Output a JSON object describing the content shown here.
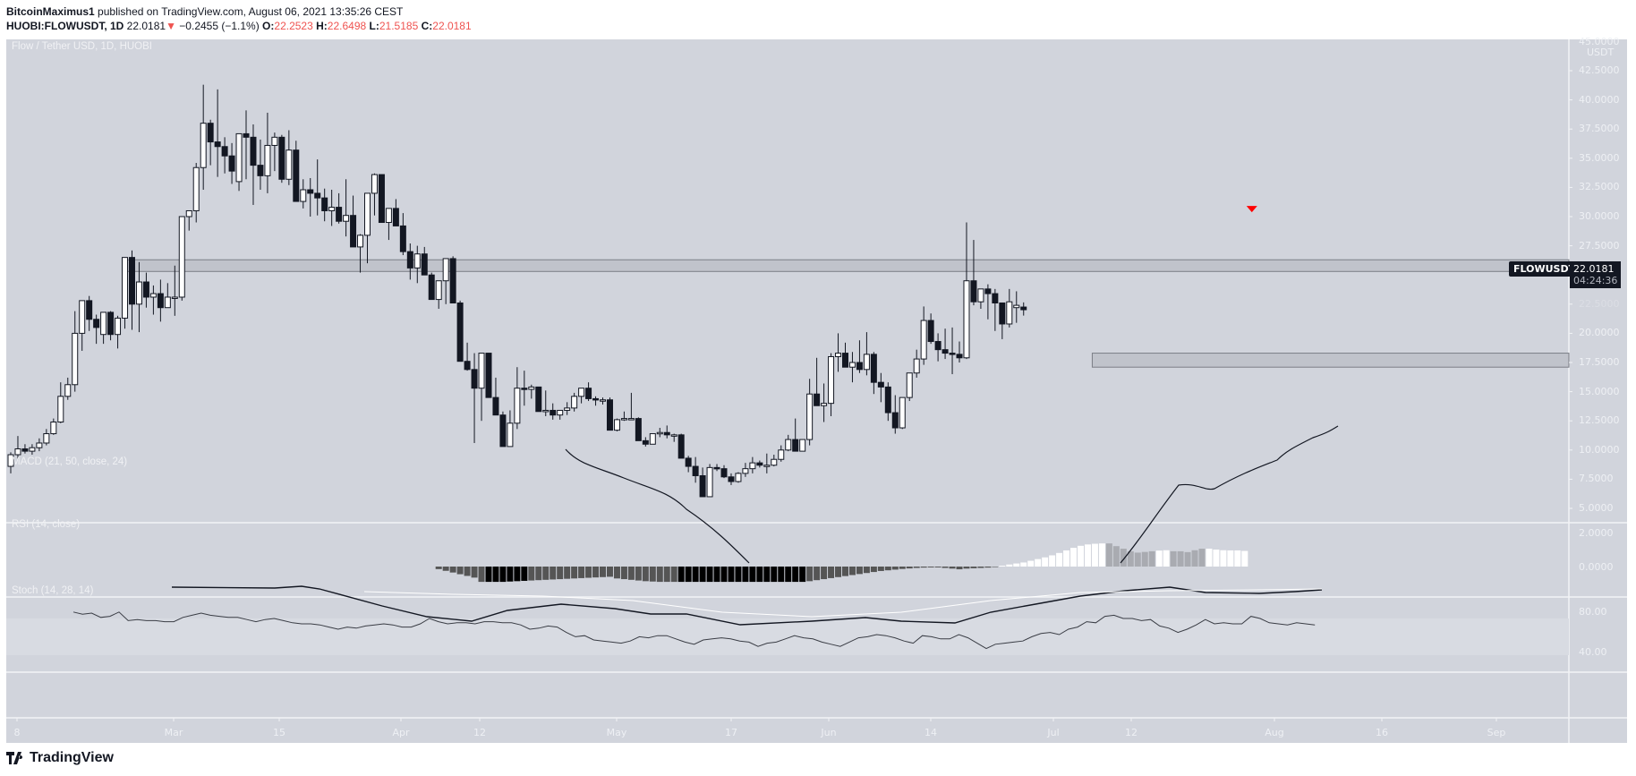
{
  "header": {
    "author": "BitcoinMaximus1",
    "published_text": "published on TradingView.com, August 06, 2021 13:35:26 CEST",
    "symbol_line": "HUOBI:FLOWUSDT, 1D",
    "last": "22.0181",
    "change": "−0.2455 (−1.1%)",
    "o_label": "O:",
    "o": "22.2523",
    "h_label": "H:",
    "h": "22.6498",
    "l_label": "L:",
    "l": "21.5185",
    "c_label": "C:",
    "c": "22.0181",
    "down_arrow": "▼"
  },
  "chart_title": "Flow / Tether USD, 1D, HUOBI",
  "price_axis": {
    "unit": "USDT",
    "top_partial": "45.0000",
    "ticks": [
      "42.5000",
      "40.0000",
      "37.5000",
      "35.0000",
      "32.5000",
      "30.0000",
      "27.5000",
      "25.0000",
      "22.5000",
      "20.0000",
      "17.5000",
      "15.0000",
      "12.5000",
      "10.0000",
      "7.5000",
      "5.0000"
    ]
  },
  "symbol_tag": "FLOWUSDT",
  "price_tag": {
    "price": "22.0181",
    "countdown": "04:24:36"
  },
  "macd": {
    "label": "MACD (21, 50, close, 24)",
    "ticks": [
      "2.0000",
      "0.0000"
    ]
  },
  "rsi": {
    "label": "RSI (14, close)",
    "ticks": [
      "80.00",
      "40.00"
    ]
  },
  "stoch": {
    "label": "Stoch (14, 28, 14)"
  },
  "time_axis": [
    "8",
    "Mar",
    "15",
    "Apr",
    "12",
    "May",
    "17",
    "Jun",
    "14",
    "Jul",
    "12",
    "Aug",
    "16",
    "Sep"
  ],
  "footer": {
    "brand": "TradingView"
  },
  "colors": {
    "background": "#d1d4dc",
    "bull_body": "#ffffff",
    "bear_body": "#131722",
    "zone_fill": "#c0c3cb",
    "zone_line": "#7b7e86",
    "marker": "#ff0000",
    "accent_red": "#ef5350"
  },
  "chart_data": {
    "type": "candlestick",
    "title": "Flow / Tether USD, 1D, HUOBI",
    "xlabel": "",
    "ylabel": "USDT",
    "ylim": [
      5.0,
      45.0
    ],
    "x_start": "2021-02-07",
    "x_step": "1D",
    "ohlc": [
      [
        8.6,
        9.8,
        8.0,
        9.6
      ],
      [
        9.6,
        11.2,
        9.2,
        10.1
      ],
      [
        10.1,
        10.5,
        9.7,
        9.9
      ],
      [
        9.9,
        10.5,
        9.6,
        10.2
      ],
      [
        10.2,
        11.0,
        9.9,
        10.6
      ],
      [
        10.6,
        11.8,
        10.4,
        11.4
      ],
      [
        11.4,
        12.7,
        11.3,
        12.4
      ],
      [
        12.4,
        15.8,
        12.3,
        14.6
      ],
      [
        14.6,
        16.2,
        14.3,
        15.6
      ],
      [
        15.6,
        21.9,
        15.0,
        20.0
      ],
      [
        20.0,
        22.8,
        18.5,
        22.8
      ],
      [
        22.8,
        23.2,
        20.2,
        21.2
      ],
      [
        21.2,
        21.6,
        19.1,
        20.5
      ],
      [
        19.9,
        21.8,
        19.1,
        21.8
      ],
      [
        21.8,
        21.9,
        19.4,
        19.9
      ],
      [
        19.9,
        21.5,
        18.7,
        21.3
      ],
      [
        21.3,
        26.5,
        20.4,
        26.5
      ],
      [
        26.5,
        27.1,
        20.3,
        22.5
      ],
      [
        22.5,
        26.1,
        20.1,
        24.4
      ],
      [
        24.4,
        25.2,
        22.2,
        23.1
      ],
      [
        23.1,
        24.1,
        21.6,
        23.4
      ],
      [
        23.4,
        24.6,
        21.0,
        22.2
      ],
      [
        22.2,
        24.3,
        22.2,
        23.1
      ],
      [
        23.1,
        25.8,
        21.5,
        23.1
      ],
      [
        23.1,
        27.6,
        22.8,
        30.0
      ],
      [
        30.0,
        30.1,
        28.8,
        30.5
      ],
      [
        30.5,
        34.6,
        29.5,
        34.2
      ],
      [
        34.2,
        41.3,
        32.3,
        38.0
      ],
      [
        38.0,
        38.3,
        34.4,
        36.4
      ],
      [
        36.4,
        40.9,
        33.4,
        36.0
      ],
      [
        36.0,
        36.8,
        33.7,
        35.2
      ],
      [
        35.2,
        36.3,
        32.8,
        33.9
      ],
      [
        33.0,
        37.1,
        32.2,
        37.1
      ],
      [
        37.1,
        39.1,
        33.2,
        36.8
      ],
      [
        36.8,
        37.9,
        31.0,
        34.4
      ],
      [
        34.4,
        36.6,
        32.3,
        33.5
      ],
      [
        33.5,
        38.9,
        32.0,
        36.1
      ],
      [
        36.1,
        37.2,
        33.9,
        36.8
      ],
      [
        36.8,
        37.0,
        32.9,
        33.2
      ],
      [
        33.2,
        37.4,
        32.7,
        35.7
      ],
      [
        35.7,
        36.5,
        31.8,
        31.3
      ],
      [
        31.3,
        33.2,
        30.7,
        32.3
      ],
      [
        32.3,
        33.3,
        30.0,
        32.0
      ],
      [
        32.0,
        34.9,
        30.1,
        31.6
      ],
      [
        31.6,
        32.4,
        29.6,
        30.5
      ],
      [
        30.5,
        32.3,
        29.2,
        30.8
      ],
      [
        30.8,
        32.0,
        29.4,
        29.6
      ],
      [
        29.6,
        33.2,
        28.3,
        30.1
      ],
      [
        30.1,
        31.8,
        27.7,
        27.4
      ],
      [
        27.4,
        28.5,
        25.2,
        28.4
      ],
      [
        28.4,
        30.1,
        26.0,
        32.0
      ],
      [
        32.0,
        33.7,
        30.1,
        33.6
      ],
      [
        33.6,
        33.6,
        30.4,
        29.5
      ],
      [
        29.5,
        29.9,
        28.0,
        30.7
      ],
      [
        30.7,
        31.5,
        30.0,
        29.2
      ],
      [
        29.2,
        30.3,
        26.7,
        27.0
      ],
      [
        27.0,
        27.7,
        24.6,
        25.6
      ],
      [
        25.6,
        27.5,
        24.3,
        26.8
      ],
      [
        26.8,
        27.4,
        26.0,
        25.0
      ],
      [
        25.0,
        25.2,
        23.7,
        22.9
      ],
      [
        22.9,
        24.2,
        22.1,
        24.5
      ],
      [
        24.5,
        26.1,
        22.5,
        26.4
      ],
      [
        26.4,
        26.6,
        22.9,
        22.6
      ],
      [
        22.6,
        22.8,
        18.9,
        17.6
      ],
      [
        17.6,
        19.2,
        16.8,
        16.9
      ],
      [
        16.9,
        18.3,
        10.6,
        15.3
      ],
      [
        15.3,
        18.3,
        12.5,
        18.3
      ],
      [
        18.3,
        18.3,
        14.8,
        14.5
      ],
      [
        14.5,
        16.2,
        13.7,
        13.0
      ],
      [
        13.0,
        13.3,
        10.4,
        10.3
      ],
      [
        10.3,
        13.4,
        10.3,
        12.3
      ],
      [
        12.3,
        17.1,
        11.8,
        15.3
      ],
      [
        15.3,
        16.8,
        13.8,
        15.2
      ],
      [
        15.2,
        15.6,
        14.4,
        15.4
      ],
      [
        15.4,
        15.4,
        13.3,
        13.3
      ],
      [
        13.3,
        15.1,
        12.9,
        13.4
      ],
      [
        13.4,
        14.0,
        12.6,
        13.0
      ],
      [
        13.0,
        13.4,
        12.6,
        13.4
      ],
      [
        13.4,
        14.1,
        13.0,
        13.6
      ],
      [
        13.6,
        14.9,
        13.3,
        14.6
      ],
      [
        14.6,
        15.3,
        14.0,
        15.3
      ],
      [
        15.3,
        15.8,
        14.2,
        14.4
      ],
      [
        14.4,
        14.6,
        13.8,
        14.3
      ],
      [
        14.3,
        14.5,
        13.9,
        14.3
      ],
      [
        14.3,
        14.5,
        11.8,
        11.7
      ],
      [
        11.7,
        12.7,
        11.6,
        12.6
      ],
      [
        12.6,
        13.3,
        12.5,
        12.7
      ],
      [
        12.7,
        14.9,
        12.6,
        12.7
      ],
      [
        12.7,
        12.8,
        10.9,
        10.8
      ],
      [
        10.8,
        11.1,
        10.3,
        10.5
      ],
      [
        10.5,
        11.2,
        10.5,
        11.4
      ],
      [
        11.4,
        11.9,
        11.1,
        11.5
      ],
      [
        11.5,
        12.1,
        11.0,
        11.3
      ],
      [
        11.3,
        11.4,
        10.7,
        11.3
      ],
      [
        11.3,
        11.4,
        10.2,
        9.3
      ],
      [
        9.3,
        9.5,
        8.1,
        8.6
      ],
      [
        8.6,
        9.4,
        7.2,
        7.8
      ],
      [
        7.8,
        8.5,
        6.2,
        6.0
      ],
      [
        6.0,
        8.8,
        6.0,
        8.5
      ],
      [
        8.5,
        8.8,
        8.2,
        8.4
      ],
      [
        8.4,
        8.7,
        7.6,
        7.7
      ],
      [
        7.7,
        8.0,
        7.0,
        7.3
      ],
      [
        7.3,
        8.1,
        7.2,
        8.0
      ],
      [
        8.0,
        8.9,
        7.7,
        8.4
      ],
      [
        8.4,
        9.4,
        8.0,
        8.9
      ],
      [
        8.9,
        9.1,
        8.5,
        8.7
      ],
      [
        8.7,
        9.7,
        8.0,
        8.7
      ],
      [
        8.7,
        9.6,
        8.6,
        9.2
      ],
      [
        9.2,
        10.4,
        9.0,
        10.0
      ],
      [
        10.0,
        11.3,
        9.9,
        10.9
      ],
      [
        10.9,
        12.7,
        10.2,
        9.9
      ],
      [
        9.9,
        10.7,
        9.9,
        10.9
      ],
      [
        10.9,
        16.1,
        10.4,
        14.8
      ],
      [
        14.8,
        17.9,
        13.8,
        13.8
      ],
      [
        13.8,
        15.7,
        12.4,
        14.0
      ],
      [
        14.0,
        18.3,
        12.9,
        18.0
      ],
      [
        18.0,
        20.0,
        16.7,
        18.3
      ],
      [
        18.3,
        19.2,
        17.1,
        17.1
      ],
      [
        17.1,
        18.4,
        15.8,
        17.5
      ],
      [
        17.5,
        19.4,
        16.6,
        16.9
      ],
      [
        16.9,
        20.1,
        16.4,
        18.2
      ],
      [
        18.2,
        18.4,
        14.8,
        15.8
      ],
      [
        15.8,
        16.6,
        14.1,
        15.4
      ],
      [
        15.4,
        15.8,
        12.5,
        13.2
      ],
      [
        13.2,
        14.7,
        11.4,
        11.9
      ],
      [
        11.9,
        14.5,
        11.8,
        14.5
      ],
      [
        14.5,
        15.8,
        14.2,
        16.6
      ],
      [
        16.6,
        18.6,
        16.2,
        17.8
      ],
      [
        17.8,
        22.3,
        17.3,
        21.1
      ],
      [
        21.1,
        21.7,
        19.1,
        19.3
      ],
      [
        19.3,
        20.0,
        17.6,
        18.6
      ],
      [
        18.6,
        20.4,
        17.8,
        18.3
      ],
      [
        18.3,
        20.5,
        16.5,
        18.2
      ],
      [
        18.2,
        19.3,
        17.5,
        17.9
      ],
      [
        17.9,
        29.5,
        17.8,
        24.5
      ],
      [
        24.5,
        28.0,
        22.4,
        22.7
      ],
      [
        22.7,
        23.3,
        22.1,
        23.8
      ],
      [
        23.8,
        24.2,
        21.2,
        23.4
      ],
      [
        23.4,
        23.8,
        20.2,
        22.6
      ],
      [
        22.6,
        22.6,
        19.5,
        20.8
      ],
      [
        20.8,
        23.8,
        20.5,
        22.7
      ],
      [
        22.2,
        23.6,
        20.9,
        22.4
      ],
      [
        22.25,
        22.65,
        21.52,
        22.02
      ]
    ],
    "zones": [
      {
        "name": "resistance",
        "from": 25.3,
        "to": 26.3,
        "x_start_index": 16
      },
      {
        "name": "support",
        "from": 17.1,
        "to": 18.3,
        "x_start_index": 152
      }
    ],
    "markers": [
      {
        "type": "down-triangle",
        "index": 174,
        "price": 30.6
      }
    ],
    "macd": {
      "histogram": [
        -0.15,
        -0.25,
        -0.35,
        -0.45,
        -0.55,
        -0.65,
        -0.9,
        -0.9,
        -0.9,
        -0.9,
        -0.88,
        -0.86,
        -0.84,
        -0.82,
        -0.8,
        -0.78,
        -0.76,
        -0.74,
        -0.72,
        -0.7,
        -0.68,
        -0.66,
        -0.64,
        -0.62,
        -0.6,
        -0.7,
        -0.74,
        -0.78,
        -0.82,
        -0.86,
        -0.88,
        -0.9,
        -0.9,
        -0.9,
        -0.9,
        -0.9,
        -0.9,
        -0.9,
        -0.9,
        -0.9,
        -0.9,
        -0.9,
        -0.9,
        -0.9,
        -0.9,
        -0.9,
        -0.9,
        -0.9,
        -0.9,
        -0.9,
        -0.9,
        -0.9,
        -0.86,
        -0.8,
        -0.74,
        -0.68,
        -0.62,
        -0.56,
        -0.5,
        -0.44,
        -0.38,
        -0.32,
        -0.26,
        -0.22,
        -0.18,
        -0.14,
        -0.11,
        -0.08,
        -0.06,
        -0.05,
        -0.05,
        -0.08,
        -0.12,
        -0.16,
        -0.12,
        -0.1,
        -0.08,
        -0.06,
        -0.03,
        0.05,
        0.12,
        0.18,
        0.24,
        0.34,
        0.44,
        0.54,
        0.66,
        0.8,
        0.95,
        1.1,
        1.22,
        1.3,
        1.34,
        1.36,
        1.36,
        1.2,
        1.05,
        0.9,
        0.82,
        0.86,
        0.9,
        0.94,
        0.96,
        0.9,
        0.9,
        0.85,
        0.96,
        1.05,
        1.05,
        1.0,
        0.96,
        0.95,
        0.95,
        0.92
      ],
      "histogram_start_index": 60,
      "ticks": [
        2.0,
        0.0
      ]
    },
    "rsi": {
      "range": [
        20,
        90
      ],
      "band": [
        30,
        70
      ]
    },
    "stoch": {
      "k_label": "Stoch (14, 28, 14)"
    }
  }
}
